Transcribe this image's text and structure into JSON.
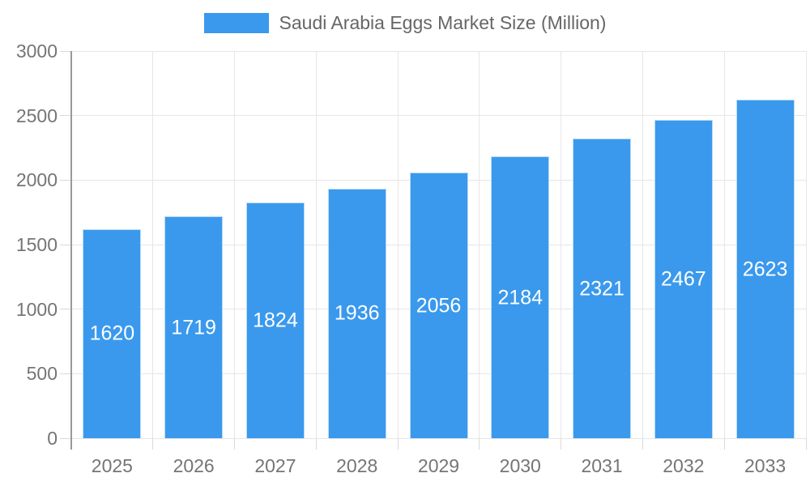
{
  "legend": {
    "label": "Saudi Arabia Eggs Market Size (Million)"
  },
  "chart_data": {
    "type": "bar",
    "title": "Saudi Arabia Eggs Market Size (Million)",
    "categories": [
      "2025",
      "2026",
      "2027",
      "2028",
      "2029",
      "2030",
      "2031",
      "2032",
      "2033"
    ],
    "values": [
      1620,
      1719,
      1824,
      1936,
      2056,
      2184,
      2321,
      2467,
      2623
    ],
    "xlabel": "",
    "ylabel": "",
    "ylim": [
      0,
      3000
    ],
    "yticks": [
      0,
      500,
      1000,
      1500,
      2000,
      2500,
      3000
    ],
    "grid": true,
    "legend_position": "top",
    "value_labels": "inside-center",
    "colors": {
      "bar": "#3a99ec",
      "gridline": "#e6e6e6",
      "axis_line": "#999999",
      "tick": "#d9d9d9",
      "axis_text": "#757575",
      "legend_text": "#666666",
      "value_text": "#ffffff",
      "background": "#ffffff"
    }
  }
}
